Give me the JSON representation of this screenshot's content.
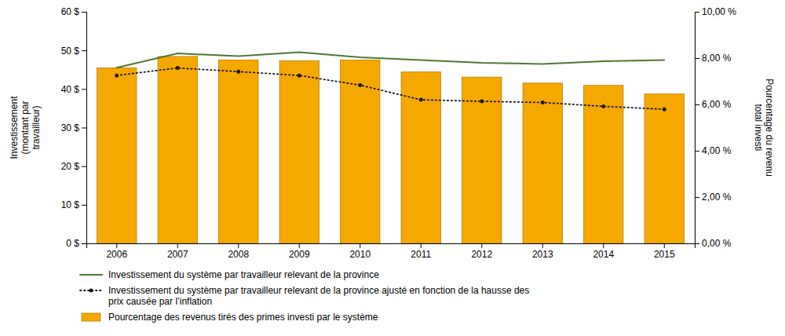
{
  "chart_data": {
    "type": "bar",
    "categories": [
      "2006",
      "2007",
      "2008",
      "2009",
      "2010",
      "2011",
      "2012",
      "2013",
      "2014",
      "2015"
    ],
    "series": [
      {
        "name": "Investissement du système par travailleur relevant de la province",
        "type": "line",
        "color": "#4C7A34",
        "line_style": "solid",
        "values": [
          45.5,
          49.2,
          48.5,
          49.5,
          48.2,
          47.5,
          46.8,
          46.5,
          47.2,
          47.5
        ]
      },
      {
        "name": "Investissement du système par travailleur relevant de la province ajusté en fonction de la hausse des\nprix causée par l’inflation",
        "type": "line",
        "color": "#1A1A1A",
        "line_style": "dotted",
        "marker": "dot",
        "values": [
          43.5,
          45.44,
          44.5,
          43.5,
          41.0,
          37.2,
          36.8,
          36.5,
          35.5,
          34.75
        ]
      },
      {
        "name": "Pourcentage des revenus tirés des primes investi par le système",
        "type": "bar",
        "color": "#F5A800",
        "axis": "y2",
        "values": [
          7.58,
          8.07,
          7.92,
          7.88,
          7.92,
          7.4,
          7.18,
          6.92,
          6.82,
          6.45
        ]
      }
    ],
    "ylabel": "Investissement\n(montant par\ntravailleur)",
    "y2label": "Pourcentage du revenu\ntotal investi",
    "ylim": [
      0,
      60
    ],
    "yticks": [
      {
        "value": 0,
        "label": "0 $"
      },
      {
        "value": 10,
        "label": "10 $"
      },
      {
        "value": 20,
        "label": "20 $"
      },
      {
        "value": 30,
        "label": "30 $"
      },
      {
        "value": 40,
        "label": "40 $"
      },
      {
        "value": 50,
        "label": "50 $"
      },
      {
        "value": 60,
        "label": "60 $"
      }
    ],
    "y2lim": [
      0,
      10.0
    ],
    "y2ticks": [
      {
        "value": 0,
        "label": "0,00 %"
      },
      {
        "value": 2.0,
        "label": "2,00 %"
      },
      {
        "value": 4.0,
        "label": "4,00 %"
      },
      {
        "value": 6.0,
        "label": "6,00 %"
      },
      {
        "value": 8.0,
        "label": "8,00 %"
      },
      {
        "value": 10.0,
        "label": "10,00 %"
      }
    ],
    "grid": false,
    "legend": "bottom"
  }
}
